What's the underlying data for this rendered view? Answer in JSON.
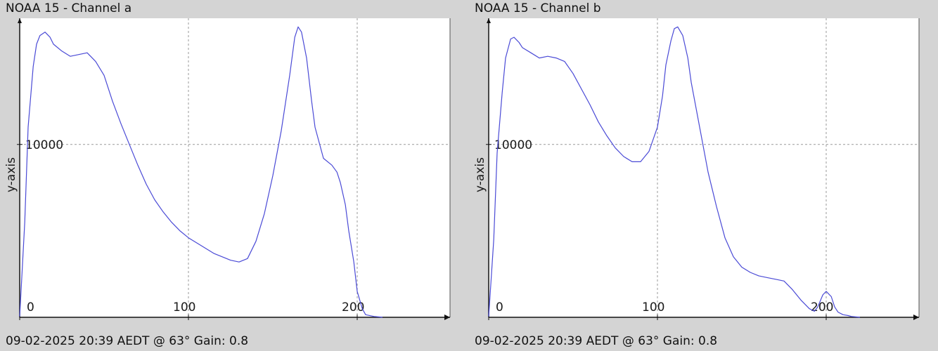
{
  "panels": [
    {
      "title": "NOAA 15 - Channel a",
      "status": "09-02-2025 20:39 AEDT @ 63° Gain: 0.8"
    },
    {
      "title": "NOAA 15 - Channel b",
      "status": "09-02-2025 20:39 AEDT @ 63° Gain: 0.8"
    }
  ],
  "chart_data": [
    {
      "type": "line",
      "title": "NOAA 15 - Channel a",
      "xlabel": "",
      "ylabel": "y-axis",
      "xlim": [
        0,
        255
      ],
      "ylim": [
        0,
        17300
      ],
      "x_ticks": [
        0,
        100,
        200
      ],
      "y_ticks": [
        10000
      ],
      "grid": true,
      "line_color": "#4a4ad6",
      "series": [
        {
          "x": [
            0,
            3,
            5,
            8,
            10,
            12,
            15,
            18,
            20,
            25,
            30,
            35,
            40,
            45,
            50,
            55,
            60,
            65,
            70,
            75,
            80,
            85,
            90,
            95,
            100,
            105,
            110,
            115,
            120,
            125,
            130,
            135,
            140,
            145,
            150,
            155,
            160,
            163,
            165,
            167,
            170,
            173,
            175,
            180,
            185,
            188,
            190,
            193,
            195,
            198,
            200,
            203,
            205,
            210,
            213,
            215
          ],
          "y": [
            50,
            5500,
            11000,
            14500,
            15800,
            16300,
            16500,
            16200,
            15800,
            15400,
            15100,
            15200,
            15300,
            14800,
            14000,
            12500,
            11200,
            10000,
            8800,
            7700,
            6800,
            6100,
            5500,
            5000,
            4600,
            4300,
            4000,
            3700,
            3500,
            3300,
            3200,
            3400,
            4400,
            6000,
            8200,
            10800,
            14000,
            16200,
            16800,
            16500,
            15000,
            12500,
            11000,
            9200,
            8800,
            8400,
            7800,
            6500,
            5000,
            3200,
            1500,
            500,
            150,
            50,
            20,
            0
          ]
        }
      ]
    },
    {
      "type": "line",
      "title": "NOAA 15 - Channel b",
      "xlabel": "",
      "ylabel": "y-axis",
      "xlim": [
        0,
        255
      ],
      "ylim": [
        0,
        17300
      ],
      "x_ticks": [
        0,
        100,
        200
      ],
      "y_ticks": [
        10000
      ],
      "grid": true,
      "line_color": "#4a4ad6",
      "series": [
        {
          "x": [
            0,
            3,
            5,
            8,
            10,
            13,
            15,
            18,
            20,
            25,
            30,
            35,
            40,
            45,
            50,
            55,
            60,
            65,
            70,
            75,
            80,
            85,
            90,
            95,
            100,
            103,
            105,
            108,
            110,
            112,
            115,
            118,
            120,
            125,
            130,
            135,
            140,
            145,
            150,
            155,
            160,
            165,
            170,
            175,
            180,
            185,
            190,
            193,
            195,
            198,
            200,
            203,
            205,
            207,
            210,
            213,
            215,
            218,
            220
          ],
          "y": [
            50,
            4500,
            9500,
            13000,
            15000,
            16100,
            16200,
            15900,
            15600,
            15300,
            15000,
            15100,
            15000,
            14800,
            14100,
            13200,
            12300,
            11300,
            10500,
            9800,
            9300,
            9000,
            9000,
            9600,
            11000,
            12800,
            14600,
            16000,
            16700,
            16800,
            16300,
            15000,
            13600,
            11000,
            8400,
            6400,
            4600,
            3500,
            2900,
            2600,
            2400,
            2300,
            2200,
            2100,
            1600,
            1000,
            500,
            350,
            600,
            1300,
            1500,
            1200,
            600,
            300,
            150,
            100,
            50,
            20,
            0
          ]
        }
      ]
    }
  ]
}
